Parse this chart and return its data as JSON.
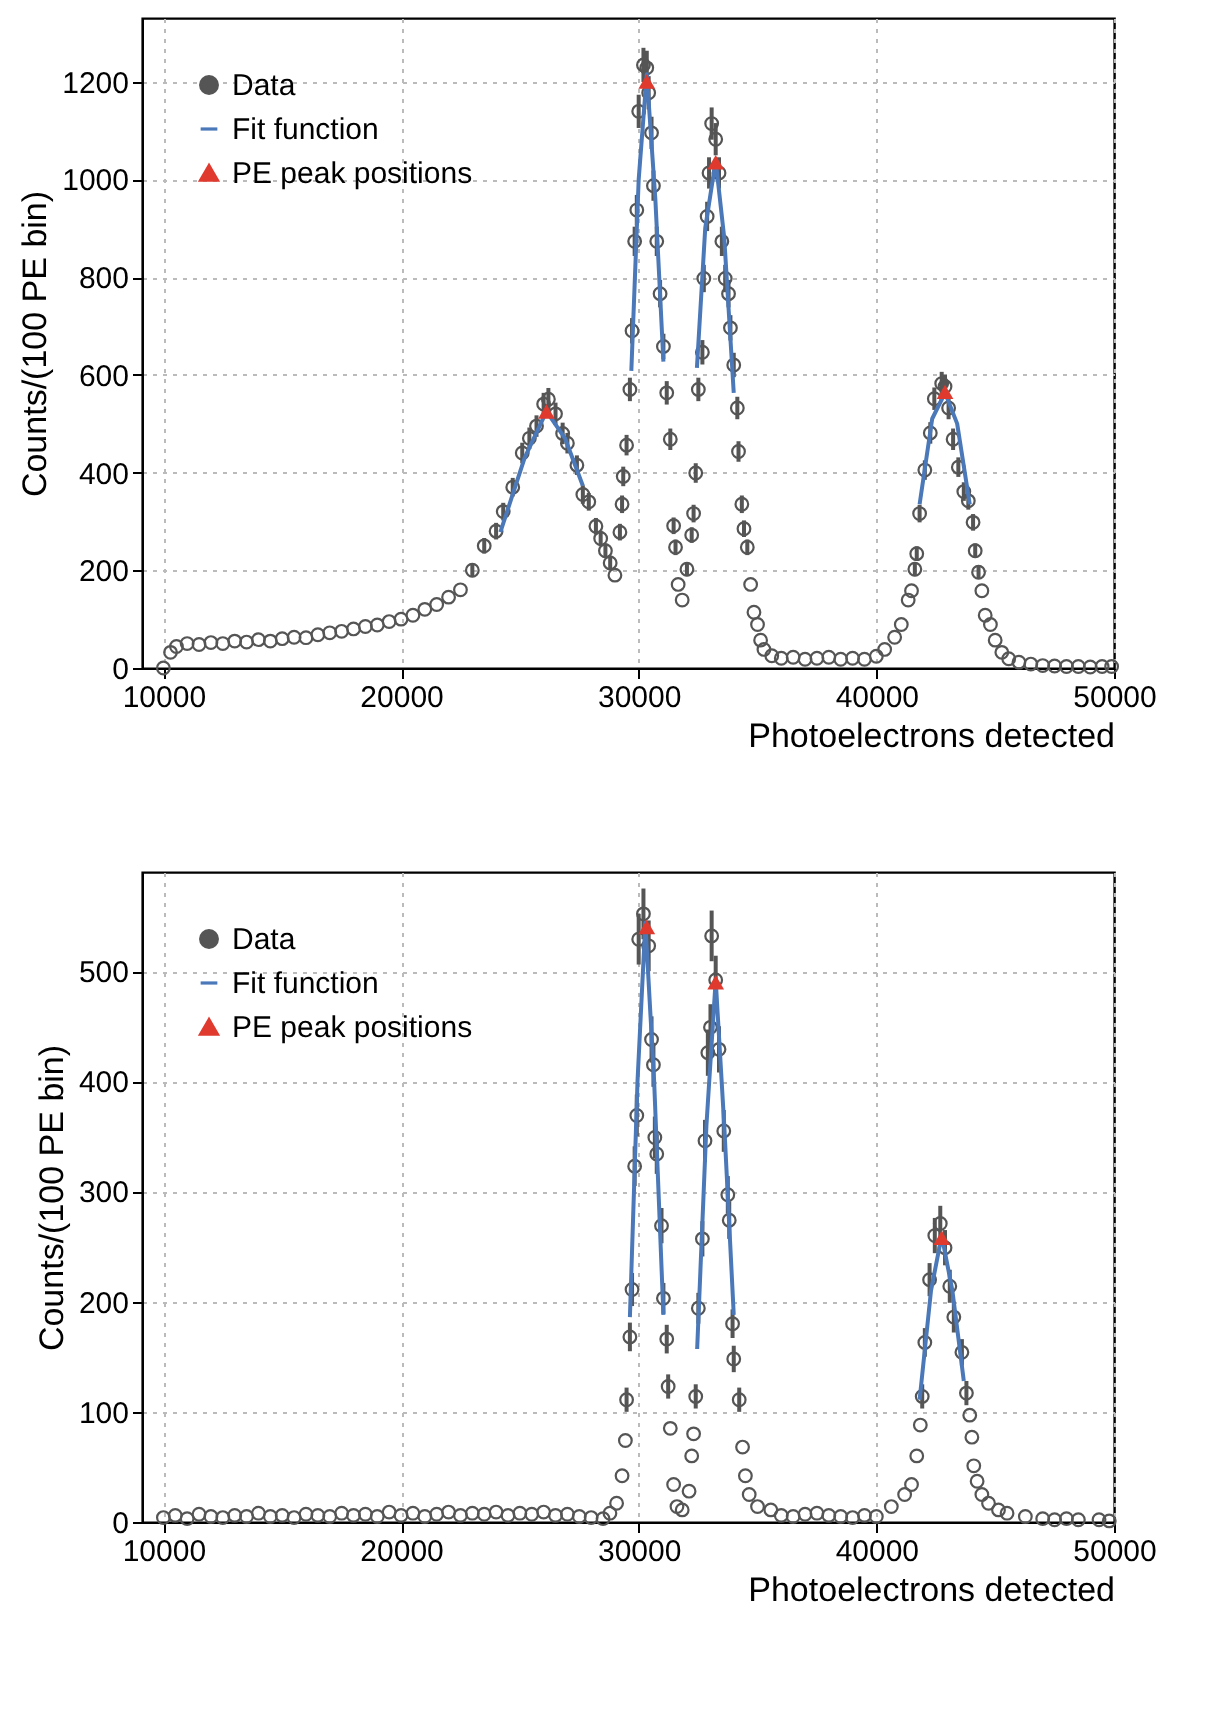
{
  "chart_data": [
    {
      "type": "scatter",
      "xlabel": "Photoelectrons detected",
      "ylabel": "Counts/(100 PE bin)",
      "xlim": [
        9100,
        50000
      ],
      "ylim": [
        0,
        1330
      ],
      "xticks": [
        10000,
        20000,
        30000,
        40000,
        50000
      ],
      "yticks": [
        0,
        200,
        400,
        600,
        800,
        1000,
        1200
      ],
      "grid": true,
      "legend": "top left",
      "series": [
        {
          "name": "Data",
          "type": "scatter",
          "marker": "circle",
          "color": "#555555",
          "x": [
            10000,
            10300,
            10550,
            11000,
            11500,
            12000,
            12500,
            13000,
            13500,
            14000,
            14500,
            15000,
            15500,
            16000,
            16500,
            17000,
            17500,
            18000,
            18500,
            19000,
            19500,
            20000,
            20500,
            21000,
            21500,
            22000,
            22500,
            23000,
            23500,
            24000,
            24300,
            24700,
            25100,
            25400,
            25700,
            26000,
            26200,
            26500,
            26800,
            27000,
            27400,
            27650,
            27900,
            28200,
            28400,
            28600,
            28800,
            29000,
            29210,
            29300,
            29350,
            29490,
            29630,
            29720,
            29830,
            29920,
            30000,
            30200,
            30340,
            30420,
            30540,
            30620,
            30760,
            30900,
            31040,
            31180,
            31330,
            31470,
            31550,
            31660,
            31830,
            32030,
            32230,
            32310,
            32400,
            32510,
            32680,
            32740,
            32880,
            32960,
            33070,
            33240,
            33380,
            33500,
            33640,
            33780,
            33860,
            34000,
            34150,
            34200,
            34340,
            34430,
            34570,
            34710,
            34850,
            35000,
            35130,
            35270,
            35600,
            36000,
            36500,
            37000,
            37500,
            38000,
            38500,
            39000,
            39500,
            40000,
            40350,
            40770,
            41050,
            41340,
            41480,
            41620,
            41700,
            41820,
            42040,
            42270,
            42440,
            42750,
            42890,
            43040,
            43230,
            43450,
            43680,
            43870,
            44070,
            44160,
            44300,
            44440,
            44580,
            44800,
            45000,
            45280,
            45570,
            46000,
            46500,
            47000,
            47500,
            48000,
            48500,
            49000,
            49500,
            49900
          ],
          "values": [
            0,
            32,
            44,
            50,
            48,
            52,
            50,
            55,
            53,
            58,
            55,
            60,
            63,
            62,
            68,
            72,
            75,
            80,
            85,
            88,
            95,
            100,
            108,
            120,
            130,
            145,
            160,
            200,
            250,
            280,
            320,
            370,
            440,
            470,
            495,
            540,
            550,
            520,
            480,
            460,
            415,
            355,
            340,
            290,
            265,
            240,
            215,
            190,
            278,
            335,
            392,
            456,
            570,
            690,
            873,
            937,
            1139,
            1234,
            1228,
            1177,
            1095,
            987,
            873,
            766,
            658,
            563,
            468,
            291,
            247,
            171,
            139,
            202,
            272,
            316,
            399,
            570,
            646,
            797,
            924,
            1013,
            1114,
            1082,
            1013,
            873,
            797,
            766,
            696,
            620,
            532,
            443,
            335,
            285,
            247,
            171,
            114,
            89,
            57,
            38,
            25,
            20,
            22,
            18,
            20,
            22,
            18,
            20,
            18,
            24,
            38,
            63,
            89,
            139,
            158,
            202,
            234,
            316,
            405,
            481,
            551,
            582,
            576,
            532,
            468,
            411,
            361,
            342,
            298,
            240,
            196,
            158,
            108,
            89,
            57,
            32,
            19,
            12,
            8,
            5,
            4,
            3,
            3,
            2,
            3,
            3
          ],
          "errors": [
            null,
            null,
            null,
            null,
            null,
            null,
            null,
            null,
            null,
            null,
            null,
            null,
            null,
            null,
            null,
            null,
            null,
            null,
            null,
            null,
            null,
            null,
            null,
            null,
            null,
            null,
            null,
            14,
            16,
            17,
            18,
            19,
            21,
            22,
            22,
            23,
            23,
            23,
            22,
            21,
            20,
            19,
            18,
            17,
            16,
            15,
            15,
            null,
            17,
            18,
            20,
            21,
            24,
            26,
            30,
            31,
            34,
            35,
            35,
            34,
            33,
            31,
            30,
            28,
            26,
            24,
            22,
            17,
            16,
            null,
            null,
            14,
            16,
            18,
            20,
            24,
            25,
            28,
            30,
            32,
            33,
            33,
            32,
            30,
            28,
            28,
            26,
            25,
            23,
            21,
            18,
            17,
            16,
            null,
            null,
            null,
            null,
            null,
            null,
            null,
            null,
            null,
            null,
            null,
            null,
            null,
            null,
            null,
            null,
            null,
            null,
            null,
            null,
            14,
            15,
            18,
            20,
            22,
            23,
            24,
            24,
            23,
            22,
            20,
            19,
            18,
            17,
            15,
            14,
            null,
            null,
            null,
            null,
            null,
            null,
            null,
            null,
            null,
            null,
            null,
            null,
            null,
            null,
            null
          ]
        },
        {
          "name": "Fit function",
          "type": "line",
          "color": "#4a78b8",
          "x": [
            24180,
            25200,
            26120,
            26900,
            27650
          ],
          "values": [
            278,
            430,
            525,
            470,
            373
          ]
        },
        {
          "type": "line",
          "color": "#4a78b8",
          "x": [
            29690,
            30000,
            30340,
            30700,
            31040
          ],
          "values": [
            608,
            1000,
            1215,
            960,
            627
          ]
        },
        {
          "type": "line",
          "color": "#4a78b8",
          "x": [
            32450,
            32800,
            33240,
            33600,
            34000
          ],
          "values": [
            614,
            900,
            1038,
            880,
            563
          ]
        },
        {
          "type": "line",
          "color": "#4a78b8",
          "x": [
            41820,
            42350,
            42890,
            43400,
            43930
          ],
          "values": [
            335,
            510,
            563,
            500,
            335
          ]
        },
        {
          "name": "PE peak positions",
          "type": "scatter",
          "marker": "triangle",
          "color": "#e03a2f",
          "x": [
            26120,
            30340,
            33240,
            42890
          ],
          "values": [
            525,
            1200,
            1035,
            565
          ]
        }
      ]
    },
    {
      "type": "scatter",
      "xlabel": "Photoelectrons detected",
      "ylabel": "Counts/(100 PE bin)",
      "xlim": [
        9100,
        50000
      ],
      "ylim": [
        0,
        590
      ],
      "xticks": [
        10000,
        20000,
        30000,
        40000,
        50000
      ],
      "yticks": [
        0,
        100,
        200,
        300,
        400,
        500
      ],
      "grid": true,
      "legend": "top left",
      "series": [
        {
          "name": "Data",
          "type": "scatter",
          "marker": "circle",
          "color": "#555555",
          "x": [
            10000,
            10500,
            11000,
            11500,
            12000,
            12500,
            13000,
            13500,
            14000,
            14500,
            15000,
            15500,
            16000,
            16500,
            17000,
            17500,
            18000,
            18500,
            19000,
            19500,
            20000,
            20500,
            21000,
            21500,
            22000,
            22500,
            23000,
            23500,
            24000,
            24500,
            25000,
            25500,
            26000,
            26500,
            27000,
            27500,
            28000,
            28500,
            28790,
            29070,
            29300,
            29440,
            29490,
            29630,
            29720,
            29830,
            29920,
            30000,
            30200,
            30420,
            30540,
            30620,
            30680,
            30760,
            30960,
            31040,
            31180,
            31240,
            31330,
            31470,
            31610,
            31830,
            32120,
            32230,
            32310,
            32400,
            32510,
            32680,
            32790,
            32910,
            33020,
            33070,
            33240,
            33380,
            33580,
            33750,
            33810,
            33950,
            34000,
            34230,
            34370,
            34490,
            34650,
            35000,
            35560,
            36000,
            36500,
            37000,
            37500,
            38000,
            38500,
            39000,
            39500,
            40000,
            40630,
            41190,
            41480,
            41700,
            41850,
            41930,
            42040,
            42240,
            42460,
            42690,
            42890,
            43090,
            43260,
            43600,
            43790,
            43930,
            44020,
            44100,
            44240,
            44440,
            44720,
            45140,
            45500,
            46270,
            47000,
            47500,
            48000,
            48500,
            49370,
            49800
          ],
          "values": [
            4,
            6,
            3,
            7,
            5,
            4,
            6,
            5,
            8,
            5,
            6,
            4,
            7,
            6,
            5,
            8,
            6,
            7,
            5,
            9,
            6,
            8,
            5,
            7,
            9,
            6,
            8,
            7,
            9,
            6,
            8,
            7,
            9,
            6,
            7,
            5,
            4,
            3,
            8,
            17,
            42,
            74,
            111,
            168,
            211,
            323,
            369,
            529,
            552,
            523,
            438,
            415,
            349,
            334,
            269,
            203,
            166,
            123,
            85,
            34,
            14,
            11,
            28,
            60,
            80,
            114,
            194,
            257,
            346,
            426,
            449,
            532,
            492,
            429,
            355,
            297,
            274,
            180,
            148,
            111,
            68,
            42,
            25,
            14,
            11,
            6,
            5,
            7,
            8,
            6,
            5,
            4,
            6,
            5,
            14,
            25,
            34,
            60,
            88,
            114,
            163,
            220,
            260,
            271,
            249,
            214,
            186,
            154,
            117,
            97,
            77,
            51,
            37,
            25,
            17,
            11,
            8,
            5,
            3,
            2,
            3,
            2,
            2,
            1
          ],
          "errors": [
            null,
            null,
            null,
            null,
            null,
            null,
            null,
            null,
            null,
            null,
            null,
            null,
            null,
            null,
            null,
            null,
            null,
            null,
            null,
            null,
            null,
            null,
            null,
            null,
            null,
            null,
            null,
            null,
            null,
            null,
            null,
            null,
            null,
            null,
            null,
            null,
            null,
            null,
            null,
            null,
            null,
            null,
            11,
            13,
            15,
            18,
            19,
            23,
            23,
            23,
            21,
            20,
            19,
            18,
            16,
            14,
            13,
            11,
            null,
            null,
            null,
            null,
            null,
            null,
            null,
            11,
            14,
            16,
            19,
            21,
            21,
            23,
            22,
            21,
            19,
            17,
            17,
            13,
            12,
            11,
            null,
            null,
            null,
            null,
            null,
            null,
            null,
            null,
            null,
            null,
            null,
            null,
            null,
            null,
            null,
            null,
            null,
            null,
            null,
            11,
            13,
            15,
            16,
            16,
            16,
            15,
            14,
            12,
            11,
            null,
            null,
            null,
            null,
            null,
            null,
            null,
            null,
            null,
            null,
            null,
            null,
            null,
            null,
            null
          ]
        },
        {
          "name": "Fit function",
          "type": "line",
          "color": "#4a78b8",
          "x": [
            29630,
            29950,
            30280,
            30650,
            31040
          ],
          "values": [
            186,
            400,
            544,
            400,
            188
          ]
        },
        {
          "type": "line",
          "color": "#4a78b8",
          "x": [
            32460,
            32850,
            33240,
            33600,
            34000
          ],
          "values": [
            157,
            360,
            492,
            360,
            188
          ]
        },
        {
          "type": "line",
          "color": "#4a78b8",
          "x": [
            41820,
            42300,
            42750,
            43200,
            43680
          ],
          "values": [
            111,
            210,
            260,
            210,
            128
          ]
        },
        {
          "name": "PE peak positions",
          "type": "scatter",
          "marker": "triangle",
          "color": "#e03a2f",
          "x": [
            30340,
            33240,
            42750
          ],
          "values": [
            540,
            490,
            258
          ]
        }
      ]
    }
  ]
}
